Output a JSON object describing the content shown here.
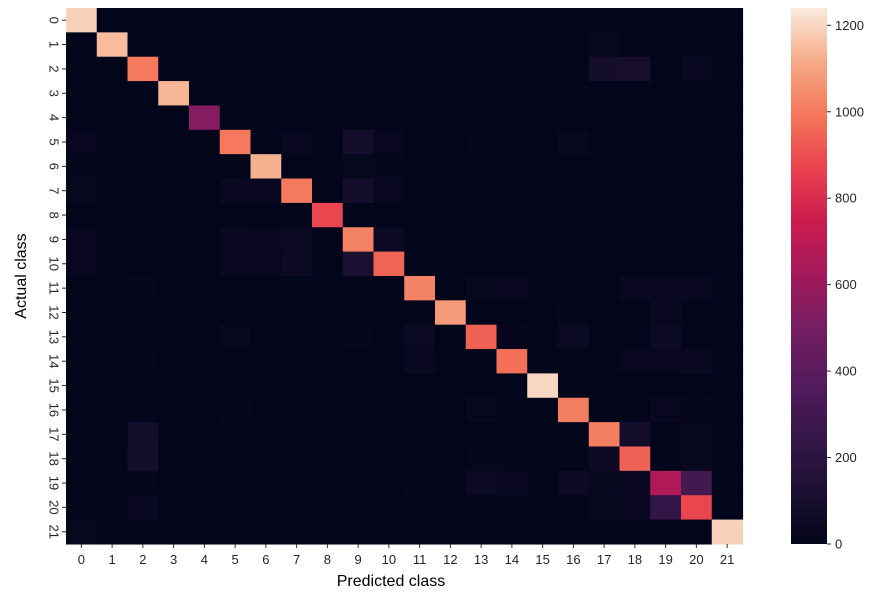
{
  "chart_data": {
    "type": "heatmap",
    "xlabel": "Predicted class",
    "ylabel": "Actual class",
    "x_categories": [
      "0",
      "1",
      "2",
      "3",
      "4",
      "5",
      "6",
      "7",
      "8",
      "9",
      "10",
      "11",
      "12",
      "13",
      "14",
      "15",
      "16",
      "17",
      "18",
      "19",
      "20",
      "21"
    ],
    "y_categories": [
      "0",
      "1",
      "2",
      "3",
      "4",
      "5",
      "6",
      "7",
      "8",
      "9",
      "10",
      "11",
      "12",
      "13",
      "14",
      "15",
      "16",
      "17",
      "18",
      "19",
      "20",
      "21"
    ],
    "colorbar": {
      "vmin": 0,
      "vmax": 1240,
      "ticks": [
        0,
        200,
        400,
        600,
        800,
        1000,
        1200
      ]
    },
    "colormap": "rocket",
    "values": [
      [
        1190,
        0,
        0,
        0,
        0,
        0,
        0,
        0,
        0,
        0,
        0,
        0,
        0,
        0,
        0,
        0,
        0,
        0,
        0,
        0,
        0,
        0
      ],
      [
        0,
        1150,
        8,
        0,
        0,
        0,
        0,
        0,
        0,
        0,
        0,
        0,
        0,
        0,
        0,
        0,
        0,
        20,
        0,
        0,
        0,
        0
      ],
      [
        0,
        0,
        1000,
        0,
        0,
        0,
        0,
        0,
        0,
        0,
        0,
        0,
        0,
        0,
        0,
        0,
        0,
        90,
        100,
        0,
        30,
        0
      ],
      [
        0,
        0,
        0,
        1140,
        0,
        0,
        0,
        0,
        0,
        0,
        0,
        0,
        0,
        0,
        0,
        0,
        0,
        0,
        0,
        0,
        0,
        0
      ],
      [
        0,
        0,
        0,
        0,
        540,
        0,
        0,
        0,
        0,
        0,
        0,
        0,
        0,
        0,
        0,
        0,
        0,
        0,
        0,
        0,
        0,
        0
      ],
      [
        25,
        0,
        0,
        0,
        0,
        1000,
        0,
        25,
        0,
        90,
        25,
        0,
        0,
        15,
        0,
        0,
        20,
        0,
        0,
        0,
        0,
        0
      ],
      [
        15,
        0,
        0,
        0,
        0,
        0,
        1130,
        0,
        0,
        20,
        15,
        0,
        0,
        0,
        0,
        0,
        0,
        0,
        0,
        0,
        0,
        0
      ],
      [
        20,
        0,
        0,
        0,
        0,
        30,
        35,
        1000,
        0,
        90,
        25,
        0,
        0,
        0,
        0,
        0,
        0,
        0,
        0,
        0,
        0,
        0
      ],
      [
        0,
        0,
        0,
        0,
        0,
        0,
        0,
        0,
        880,
        0,
        0,
        0,
        0,
        0,
        0,
        0,
        0,
        0,
        0,
        0,
        0,
        0
      ],
      [
        25,
        0,
        0,
        0,
        0,
        35,
        25,
        40,
        0,
        1020,
        50,
        0,
        0,
        0,
        0,
        0,
        0,
        0,
        0,
        0,
        0,
        0
      ],
      [
        25,
        0,
        0,
        0,
        0,
        30,
        25,
        45,
        0,
        110,
        950,
        0,
        0,
        0,
        0,
        0,
        0,
        0,
        0,
        0,
        0,
        0
      ],
      [
        0,
        0,
        15,
        0,
        0,
        0,
        0,
        0,
        0,
        0,
        0,
        1020,
        0,
        20,
        25,
        0,
        0,
        0,
        30,
        25,
        30,
        0
      ],
      [
        0,
        0,
        0,
        0,
        0,
        0,
        0,
        0,
        0,
        0,
        0,
        0,
        1080,
        0,
        0,
        0,
        15,
        0,
        0,
        30,
        0,
        0
      ],
      [
        0,
        0,
        0,
        0,
        0,
        20,
        0,
        0,
        0,
        15,
        0,
        40,
        0,
        940,
        15,
        0,
        40,
        0,
        0,
        55,
        0,
        0
      ],
      [
        0,
        0,
        15,
        0,
        0,
        0,
        0,
        0,
        0,
        0,
        0,
        35,
        0,
        0,
        980,
        0,
        0,
        0,
        25,
        25,
        35,
        0
      ],
      [
        0,
        0,
        0,
        0,
        0,
        0,
        0,
        0,
        0,
        0,
        0,
        0,
        0,
        0,
        0,
        1200,
        0,
        0,
        0,
        0,
        0,
        0
      ],
      [
        0,
        0,
        0,
        0,
        0,
        15,
        0,
        0,
        0,
        0,
        0,
        0,
        0,
        20,
        0,
        0,
        1010,
        0,
        0,
        25,
        15,
        0
      ],
      [
        0,
        0,
        80,
        0,
        0,
        0,
        0,
        0,
        0,
        0,
        0,
        0,
        0,
        0,
        0,
        0,
        0,
        1010,
        90,
        0,
        20,
        0
      ],
      [
        0,
        0,
        90,
        0,
        0,
        0,
        0,
        0,
        0,
        0,
        0,
        0,
        0,
        15,
        15,
        0,
        0,
        50,
        940,
        0,
        20,
        0
      ],
      [
        0,
        0,
        15,
        0,
        0,
        0,
        0,
        0,
        0,
        0,
        0,
        15,
        15,
        45,
        35,
        0,
        50,
        20,
        25,
        660,
        300,
        0
      ],
      [
        0,
        0,
        30,
        0,
        0,
        0,
        0,
        0,
        0,
        0,
        0,
        0,
        0,
        0,
        0,
        0,
        0,
        20,
        35,
        230,
        880,
        0
      ],
      [
        20,
        0,
        0,
        0,
        0,
        0,
        0,
        0,
        0,
        0,
        0,
        0,
        0,
        0,
        0,
        0,
        0,
        0,
        0,
        0,
        0,
        1190
      ]
    ]
  }
}
